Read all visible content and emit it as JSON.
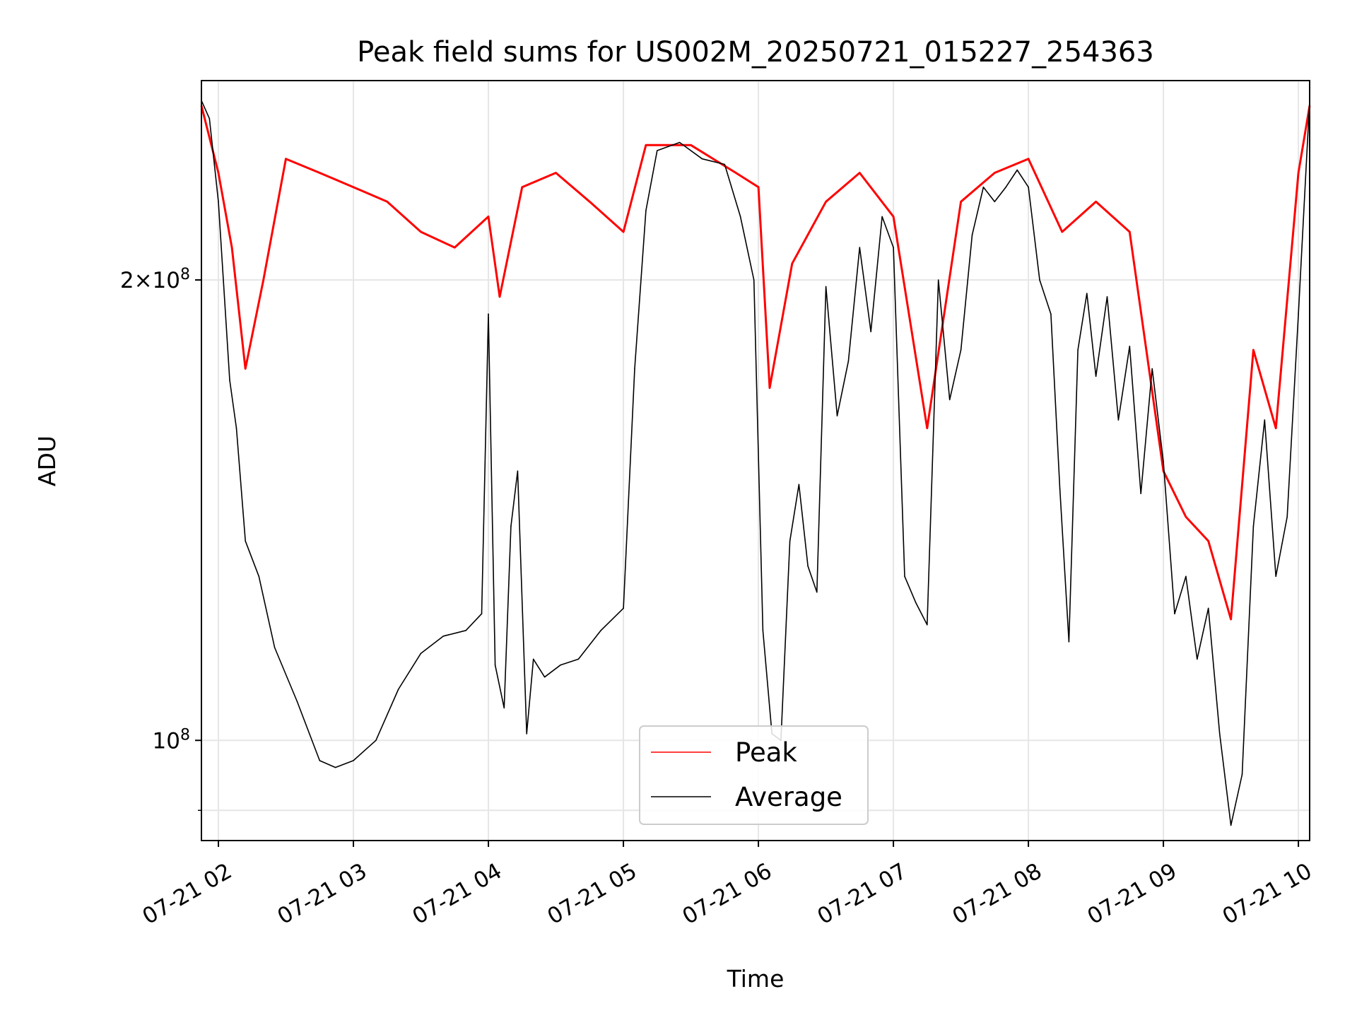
{
  "chart_data": {
    "type": "line",
    "title": "Peak field sums for US002M_20250721_015227_254363",
    "xlabel": "Time",
    "ylabel": "ADU",
    "y_scale": "log",
    "ylim": [
      86000000,
      270000000
    ],
    "xlim": [
      "2025-07-21 01:52:27",
      "2025-07-21 10:05:00"
    ],
    "grid": true,
    "legend": "lower center",
    "x_ticks": [
      {
        "t": "2025-07-21 02:00",
        "label": "07-21 02"
      },
      {
        "t": "2025-07-21 03:00",
        "label": "07-21 03"
      },
      {
        "t": "2025-07-21 04:00",
        "label": "07-21 04"
      },
      {
        "t": "2025-07-21 05:00",
        "label": "07-21 05"
      },
      {
        "t": "2025-07-21 06:00",
        "label": "07-21 06"
      },
      {
        "t": "2025-07-21 07:00",
        "label": "07-21 07"
      },
      {
        "t": "2025-07-21 08:00",
        "label": "07-21 08"
      },
      {
        "t": "2025-07-21 09:00",
        "label": "07-21 09"
      },
      {
        "t": "2025-07-21 10:00",
        "label": "07-21 10"
      }
    ],
    "y_ticks": [
      {
        "v": 200000000,
        "label": "2×10⁸",
        "mantissa": "2",
        "exp": "8"
      },
      {
        "v": 100000000,
        "label": "10⁸",
        "mantissa": "",
        "exp": "8"
      }
    ],
    "y_minor_ticks": [
      90000000
    ],
    "series": [
      {
        "name": "Peak",
        "color": "#ff0000",
        "x": [
          "2025-07-21 01:52:27",
          "2025-07-21 02:00",
          "2025-07-21 02:06",
          "2025-07-21 02:12",
          "2025-07-21 02:20",
          "2025-07-21 02:30",
          "2025-07-21 02:45",
          "2025-07-21 03:00",
          "2025-07-21 03:15",
          "2025-07-21 03:30",
          "2025-07-21 03:45",
          "2025-07-21 04:00",
          "2025-07-21 04:05",
          "2025-07-21 04:15",
          "2025-07-21 04:30",
          "2025-07-21 04:45",
          "2025-07-21 05:00",
          "2025-07-21 05:10",
          "2025-07-21 05:30",
          "2025-07-21 05:50",
          "2025-07-21 06:00",
          "2025-07-21 06:05",
          "2025-07-21 06:15",
          "2025-07-21 06:30",
          "2025-07-21 06:45",
          "2025-07-21 07:00",
          "2025-07-21 07:15",
          "2025-07-21 07:30",
          "2025-07-21 07:45",
          "2025-07-21 08:00",
          "2025-07-21 08:15",
          "2025-07-21 08:30",
          "2025-07-21 08:45",
          "2025-07-21 09:00",
          "2025-07-21 09:10",
          "2025-07-21 09:20",
          "2025-07-21 09:30",
          "2025-07-21 09:40",
          "2025-07-21 09:50",
          "2025-07-21 10:00",
          "2025-07-21 10:05"
        ],
        "values": [
          260000000,
          235000000,
          210000000,
          175000000,
          200000000,
          240000000,
          235000000,
          230000000,
          225000000,
          215000000,
          210000000,
          220000000,
          195000000,
          230000000,
          235000000,
          225000000,
          215000000,
          245000000,
          245000000,
          235000000,
          230000000,
          170000000,
          205000000,
          225000000,
          235000000,
          220000000,
          160000000,
          225000000,
          235000000,
          240000000,
          215000000,
          225000000,
          215000000,
          150000000,
          140000000,
          135000000,
          120000000,
          180000000,
          160000000,
          235000000,
          260000000
        ]
      },
      {
        "name": "Average",
        "color": "#000000",
        "x": [
          "2025-07-21 01:52:27",
          "2025-07-21 01:56",
          "2025-07-21 02:00",
          "2025-07-21 02:05",
          "2025-07-21 02:08",
          "2025-07-21 02:12",
          "2025-07-21 02:18",
          "2025-07-21 02:25",
          "2025-07-21 02:35",
          "2025-07-21 02:45",
          "2025-07-21 02:52",
          "2025-07-21 03:00",
          "2025-07-21 03:10",
          "2025-07-21 03:20",
          "2025-07-21 03:30",
          "2025-07-21 03:40",
          "2025-07-21 03:50",
          "2025-07-21 03:57",
          "2025-07-21 04:00",
          "2025-07-21 04:03",
          "2025-07-21 04:07",
          "2025-07-21 04:10",
          "2025-07-21 04:13",
          "2025-07-21 04:17",
          "2025-07-21 04:20",
          "2025-07-21 04:25",
          "2025-07-21 04:32",
          "2025-07-21 04:40",
          "2025-07-21 04:50",
          "2025-07-21 05:00",
          "2025-07-21 05:05",
          "2025-07-21 05:10",
          "2025-07-21 05:15",
          "2025-07-21 05:25",
          "2025-07-21 05:35",
          "2025-07-21 05:45",
          "2025-07-21 05:52",
          "2025-07-21 05:58",
          "2025-07-21 06:02",
          "2025-07-21 06:06",
          "2025-07-21 06:10",
          "2025-07-21 06:14",
          "2025-07-21 06:18",
          "2025-07-21 06:22",
          "2025-07-21 06:26",
          "2025-07-21 06:30",
          "2025-07-21 06:35",
          "2025-07-21 06:40",
          "2025-07-21 06:45",
          "2025-07-21 06:50",
          "2025-07-21 06:55",
          "2025-07-21 07:00",
          "2025-07-21 07:05",
          "2025-07-21 07:10",
          "2025-07-21 07:15",
          "2025-07-21 07:20",
          "2025-07-21 07:25",
          "2025-07-21 07:30",
          "2025-07-21 07:35",
          "2025-07-21 07:40",
          "2025-07-21 07:45",
          "2025-07-21 07:50",
          "2025-07-21 07:55",
          "2025-07-21 08:00",
          "2025-07-21 08:05",
          "2025-07-21 08:10",
          "2025-07-21 08:14",
          "2025-07-21 08:18",
          "2025-07-21 08:22",
          "2025-07-21 08:26",
          "2025-07-21 08:30",
          "2025-07-21 08:35",
          "2025-07-21 08:40",
          "2025-07-21 08:45",
          "2025-07-21 08:50",
          "2025-07-21 08:55",
          "2025-07-21 09:00",
          "2025-07-21 09:05",
          "2025-07-21 09:10",
          "2025-07-21 09:15",
          "2025-07-21 09:20",
          "2025-07-21 09:25",
          "2025-07-21 09:30",
          "2025-07-21 09:35",
          "2025-07-21 09:40",
          "2025-07-21 09:45",
          "2025-07-21 09:50",
          "2025-07-21 09:55",
          "2025-07-21 10:00",
          "2025-07-21 10:05"
        ],
        "values": [
          262000000,
          255000000,
          225000000,
          172000000,
          160000000,
          135000000,
          128000000,
          115000000,
          106000000,
          97000000,
          96000000,
          97000000,
          100000000,
          108000000,
          114000000,
          117000000,
          118000000,
          121000000,
          190000000,
          112000000,
          105000000,
          138000000,
          150000000,
          101000000,
          113000000,
          110000000,
          112000000,
          113000000,
          118000000,
          122000000,
          175000000,
          222000000,
          243000000,
          246000000,
          240000000,
          238000000,
          220000000,
          200000000,
          118000000,
          101000000,
          100000000,
          135000000,
          147000000,
          130000000,
          125000000,
          198000000,
          163000000,
          177000000,
          210000000,
          185000000,
          220000000,
          210000000,
          128000000,
          123000000,
          119000000,
          200000000,
          167000000,
          180000000,
          214000000,
          230000000,
          225000000,
          230000000,
          236000000,
          230000000,
          200000000,
          190000000,
          146000000,
          116000000,
          180000000,
          196000000,
          173000000,
          195000000,
          162000000,
          181000000,
          145000000,
          175000000,
          152000000,
          121000000,
          128000000,
          113000000,
          122000000,
          101000000,
          88000000,
          95000000,
          138000000,
          162000000,
          128000000,
          140000000,
          190000000,
          262000000
        ]
      }
    ]
  }
}
